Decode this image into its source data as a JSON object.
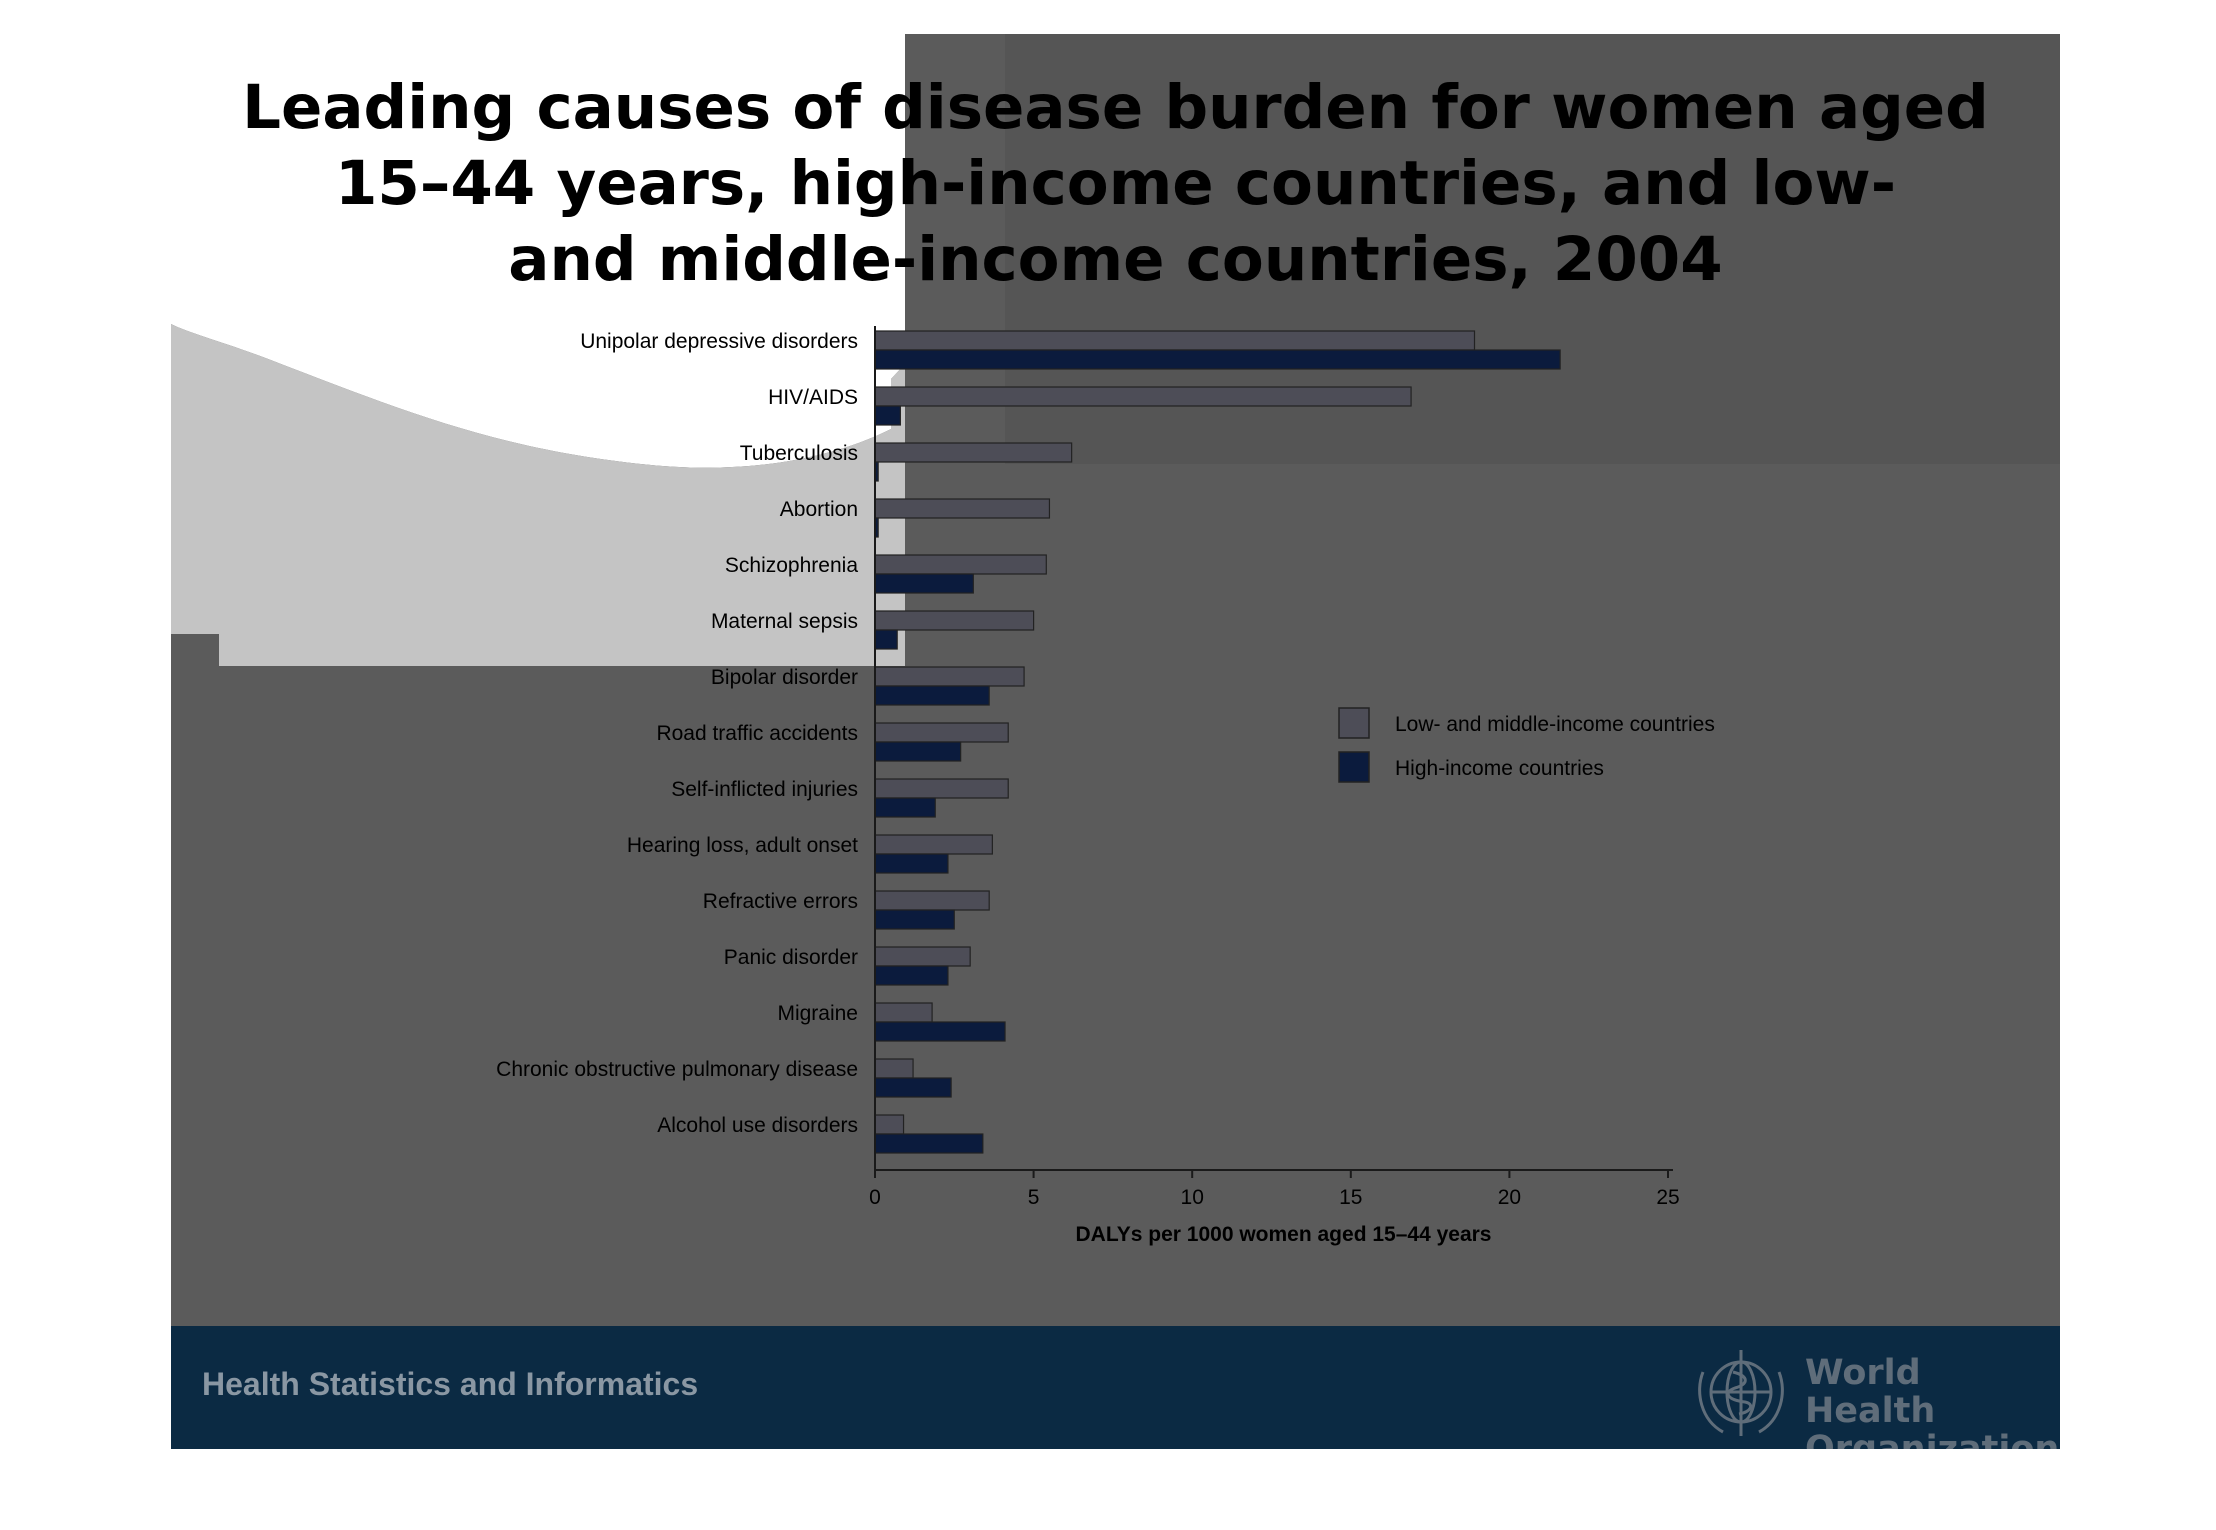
{
  "slide": {
    "title_lines": [
      "Leading causes of disease burden for women aged",
      "15–44 years, high-income countries, and low-",
      "and middle-income countries, 2004"
    ],
    "footer_text": "Health Statistics and Informatics",
    "organization_lines": [
      "World Health",
      "Organization"
    ],
    "colors": {
      "slide_background": "#5b5b5b",
      "footer_background": "#0b2a43",
      "low_middle_income_bar": "#4d4d57",
      "high_income_bar": "#0b1b3d",
      "title_text": "#000000"
    }
  },
  "chart_data": {
    "type": "bar",
    "orientation": "horizontal",
    "title": "",
    "xlabel": "DALYs per 1000 women aged 15–44 years",
    "ylabel": "",
    "xlim": [
      0,
      25
    ],
    "xticks": [
      0,
      5,
      10,
      15,
      20,
      25
    ],
    "grid": false,
    "legend_position": "right",
    "categories": [
      "Unipolar depressive disorders",
      "HIV/AIDS",
      "Tuberculosis",
      "Abortion",
      "Schizophrenia",
      "Maternal sepsis",
      "Bipolar disorder",
      "Road traffic accidents",
      "Self-inflicted injuries",
      "Hearing loss, adult onset",
      "Refractive errors",
      "Panic disorder",
      "Migraine",
      "Chronic obstructive pulmonary disease",
      "Alcohol use disorders"
    ],
    "series": [
      {
        "name": "Low- and middle-income countries",
        "color": "#4d4d57",
        "values": [
          18.9,
          16.9,
          6.2,
          5.5,
          5.4,
          5.0,
          4.7,
          4.2,
          4.2,
          3.7,
          3.6,
          3.0,
          1.8,
          1.2,
          0.9
        ]
      },
      {
        "name": "High-income countries",
        "color": "#0b1b3d",
        "values": [
          21.6,
          0.8,
          0.1,
          0.1,
          3.1,
          0.7,
          3.6,
          2.7,
          1.9,
          2.3,
          2.5,
          2.3,
          4.1,
          2.4,
          3.4
        ]
      }
    ]
  }
}
